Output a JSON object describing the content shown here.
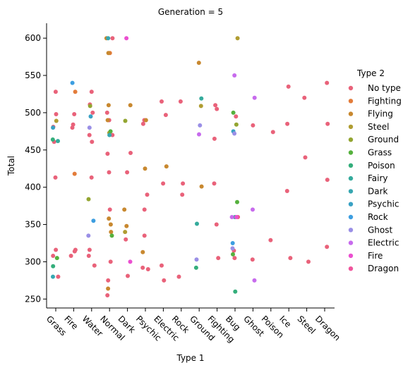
{
  "chart_data": {
    "type": "scatter",
    "title": "Generation = 5",
    "xlabel": "Type 1",
    "ylabel": "Total",
    "ylim": [
      238,
      620
    ],
    "yticks": [
      250,
      300,
      350,
      400,
      450,
      500,
      550,
      600
    ],
    "categories": [
      "Grass",
      "Fire",
      "Water",
      "Normal",
      "Dark",
      "Psychic",
      "Electric",
      "Rock",
      "Ground",
      "Fighting",
      "Bug",
      "Ghost",
      "Poison",
      "Ice",
      "Steel",
      "Dragon"
    ],
    "legend_title": "Type 2",
    "legend_position": "right",
    "grid": false,
    "series": [
      {
        "name": "No type",
        "color": "#e9627a",
        "points": [
          [
            "Grass",
            528
          ],
          [
            "Grass",
            498
          ],
          [
            "Grass",
            481
          ],
          [
            "Grass",
            461
          ],
          [
            "Grass",
            413
          ],
          [
            "Grass",
            316
          ],
          [
            "Grass",
            308
          ],
          [
            "Grass",
            280
          ],
          [
            "Fire",
            498
          ],
          [
            "Fire",
            484
          ],
          [
            "Fire",
            480
          ],
          [
            "Fire",
            316
          ],
          [
            "Fire",
            314
          ],
          [
            "Fire",
            308
          ],
          [
            "Water",
            528
          ],
          [
            "Water",
            511
          ],
          [
            "Water",
            500
          ],
          [
            "Water",
            470
          ],
          [
            "Water",
            461
          ],
          [
            "Water",
            413
          ],
          [
            "Water",
            316
          ],
          [
            "Water",
            308
          ],
          [
            "Water",
            295
          ],
          [
            "Normal",
            600
          ],
          [
            "Normal",
            500
          ],
          [
            "Normal",
            490
          ],
          [
            "Normal",
            470
          ],
          [
            "Normal",
            445
          ],
          [
            "Normal",
            420
          ],
          [
            "Normal",
            370
          ],
          [
            "Normal",
            300
          ],
          [
            "Normal",
            275
          ],
          [
            "Normal",
            255
          ],
          [
            "Dark",
            446
          ],
          [
            "Dark",
            420
          ],
          [
            "Dark",
            330
          ],
          [
            "Dark",
            281
          ],
          [
            "Psychic",
            490
          ],
          [
            "Psychic",
            485
          ],
          [
            "Psychic",
            390
          ],
          [
            "Psychic",
            370
          ],
          [
            "Psychic",
            335
          ],
          [
            "Psychic",
            292
          ],
          [
            "Psychic",
            290
          ],
          [
            "Electric",
            515
          ],
          [
            "Electric",
            497
          ],
          [
            "Electric",
            405
          ],
          [
            "Electric",
            295
          ],
          [
            "Electric",
            275
          ],
          [
            "Rock",
            515
          ],
          [
            "Rock",
            405
          ],
          [
            "Rock",
            390
          ],
          [
            "Rock",
            280
          ],
          [
            "Fighting",
            510
          ],
          [
            "Fighting",
            505
          ],
          [
            "Fighting",
            465
          ],
          [
            "Fighting",
            405
          ],
          [
            "Fighting",
            350
          ],
          [
            "Fighting",
            305
          ],
          [
            "Bug",
            495
          ],
          [
            "Bug",
            360
          ],
          [
            "Bug",
            315
          ],
          [
            "Bug",
            305
          ],
          [
            "Ghost",
            483
          ],
          [
            "Ghost",
            303
          ],
          [
            "Poison",
            474
          ],
          [
            "Poison",
            329
          ],
          [
            "Ice",
            535
          ],
          [
            "Ice",
            485
          ],
          [
            "Ice",
            395
          ],
          [
            "Ice",
            305
          ],
          [
            "Steel",
            520
          ],
          [
            "Steel",
            440
          ],
          [
            "Steel",
            300
          ],
          [
            "Dragon",
            540
          ],
          [
            "Dragon",
            485
          ],
          [
            "Dragon",
            410
          ],
          [
            "Dragon",
            320
          ]
        ]
      },
      {
        "name": "Fighting",
        "color": "#e37c3a",
        "points": [
          [
            "Fire",
            528
          ],
          [
            "Fire",
            418
          ],
          [
            "Normal",
            580
          ]
        ]
      },
      {
        "name": "Flying",
        "color": "#c8882f",
        "points": [
          [
            "Normal",
            600
          ],
          [
            "Normal",
            580
          ],
          [
            "Normal",
            510
          ],
          [
            "Normal",
            490
          ],
          [
            "Normal",
            358
          ],
          [
            "Normal",
            350
          ],
          [
            "Normal",
            340
          ],
          [
            "Normal",
            264
          ],
          [
            "Dark",
            510
          ],
          [
            "Dark",
            370
          ],
          [
            "Dark",
            348
          ],
          [
            "Psychic",
            490
          ],
          [
            "Psychic",
            425
          ],
          [
            "Psychic",
            313
          ],
          [
            "Electric",
            428
          ],
          [
            "Ground",
            567
          ],
          [
            "Ground",
            401
          ]
        ]
      },
      {
        "name": "Steel",
        "color": "#b09d32",
        "points": [
          [
            "Grass",
            489
          ],
          [
            "Normal",
            473
          ],
          [
            "Dark",
            340
          ],
          [
            "Ground",
            509
          ],
          [
            "Bug",
            600
          ]
        ]
      },
      {
        "name": "Ground",
        "color": "#93a531",
        "points": [
          [
            "Water",
            509
          ],
          [
            "Water",
            384
          ],
          [
            "Dark",
            489
          ],
          [
            "Bug",
            484
          ]
        ]
      },
      {
        "name": "Grass",
        "color": "#55b13d",
        "points": [
          [
            "Grass",
            305
          ],
          [
            "Normal",
            475
          ],
          [
            "Normal",
            335
          ],
          [
            "Bug",
            500
          ],
          [
            "Bug",
            380
          ],
          [
            "Bug",
            310
          ]
        ]
      },
      {
        "name": "Poison",
        "color": "#34ae7b",
        "points": [
          [
            "Grass",
            464
          ],
          [
            "Grass",
            294
          ],
          [
            "Ground",
            292
          ],
          [
            "Bug",
            260
          ]
        ]
      },
      {
        "name": "Fairy",
        "color": "#35ab9c",
        "points": [
          [
            "Grass",
            462
          ],
          [
            "Ground",
            519
          ],
          [
            "Ground",
            351
          ],
          [
            "Bug",
            360
          ]
        ]
      },
      {
        "name": "Dark",
        "color": "#37a7b1",
        "points": [
          [
            "Grass",
            280
          ],
          [
            "Normal",
            600
          ],
          [
            "Normal",
            470
          ]
        ]
      },
      {
        "name": "Psychic",
        "color": "#39a1c4",
        "points": [
          [
            "Grass",
            480
          ],
          [
            "Water",
            495
          ],
          [
            "Bug",
            475
          ]
        ]
      },
      {
        "name": "Rock",
        "color": "#3d9ee0",
        "points": [
          [
            "Fire",
            540
          ],
          [
            "Water",
            355
          ],
          [
            "Bug",
            325
          ]
        ]
      },
      {
        "name": "Ghost",
        "color": "#9a8fe6",
        "points": [
          [
            "Water",
            480
          ],
          [
            "Water",
            335
          ],
          [
            "Ground",
            483
          ],
          [
            "Ground",
            303
          ],
          [
            "Bug",
            472
          ],
          [
            "Bug",
            318
          ]
        ]
      },
      {
        "name": "Electric",
        "color": "#c76bed",
        "points": [
          [
            "Ground",
            471
          ],
          [
            "Bug",
            550
          ],
          [
            "Bug",
            360
          ],
          [
            "Ghost",
            520
          ],
          [
            "Ghost",
            370
          ],
          [
            "Ghost",
            275
          ]
        ]
      },
      {
        "name": "Fire",
        "color": "#eb4fd0",
        "points": [
          [
            "Dark",
            600
          ],
          [
            "Dark",
            300
          ],
          [
            "Bug",
            360
          ]
        ]
      },
      {
        "name": "Dragon",
        "color": "#f0559c",
        "points": []
      }
    ]
  }
}
